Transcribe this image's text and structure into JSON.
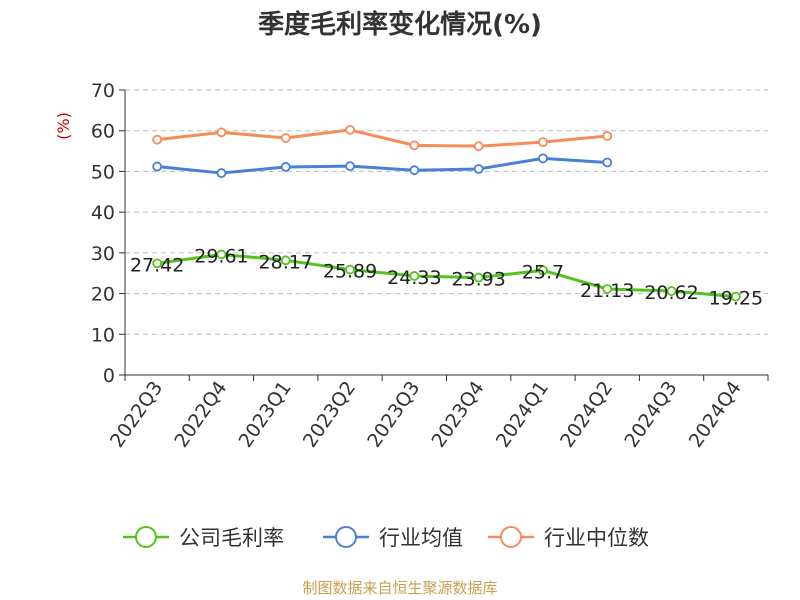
{
  "chart_data": {
    "type": "line",
    "title": "季度毛利率变化情况(%)",
    "ylabel": "(%)",
    "ylim": [
      0,
      70
    ],
    "yticks": [
      0,
      10,
      20,
      30,
      40,
      50,
      60,
      70
    ],
    "grid": true,
    "legend_position": "bottom",
    "categories": [
      "2022Q3",
      "2022Q4",
      "2023Q1",
      "2023Q2",
      "2023Q3",
      "2023Q4",
      "2024Q1",
      "2024Q2",
      "2024Q3",
      "2024Q4"
    ],
    "series": [
      {
        "name": "公司毛利率",
        "color": "#52c41a",
        "show_labels": true,
        "values": [
          27.42,
          29.61,
          28.17,
          25.89,
          24.33,
          23.93,
          25.7,
          21.13,
          20.62,
          19.25
        ],
        "labels": [
          "27.42",
          "29.61",
          "28.17",
          "25.89",
          "24.33",
          "23.93",
          "25.7",
          "21.13",
          "20.62",
          "19.25"
        ]
      },
      {
        "name": "行业均值",
        "color": "#4a7fd9",
        "show_labels": false,
        "values": [
          51.2,
          49.6,
          51.1,
          51.3,
          50.3,
          50.6,
          53.2,
          52.2,
          null,
          null
        ]
      },
      {
        "name": "行业中位数",
        "color": "#f58d5a",
        "show_labels": false,
        "values": [
          57.8,
          59.6,
          58.2,
          60.2,
          56.4,
          56.2,
          57.2,
          58.7,
          null,
          null
        ]
      }
    ]
  },
  "source": "制图数据来自恒生聚源数据库",
  "colors": {
    "axis": "#333333",
    "grid": "#bbbbbb",
    "ylabel": "#cc0000",
    "source": "#c8a050"
  }
}
